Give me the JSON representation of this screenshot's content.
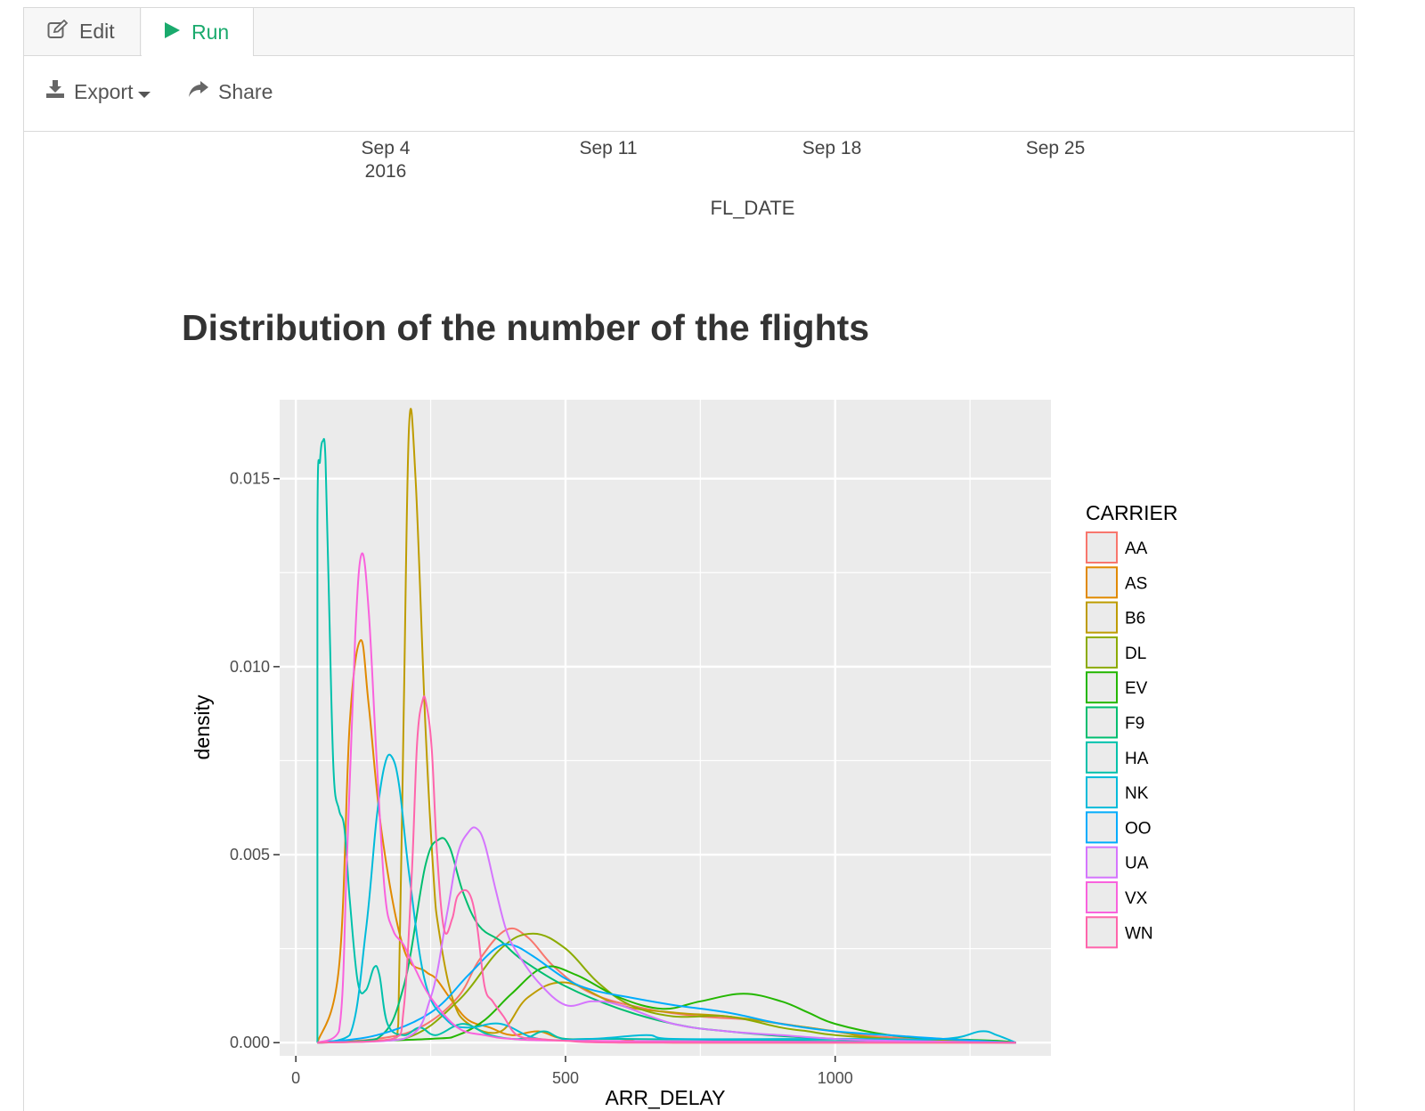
{
  "tabs": [
    {
      "label": "Edit",
      "icon": "edit-icon"
    },
    {
      "label": "Run",
      "icon": "play-icon",
      "active": true
    }
  ],
  "toolbar": {
    "export_label": "Export",
    "share_label": "Share"
  },
  "top_axis": {
    "ticks": [
      {
        "line1": "Sep 4",
        "line2": "2016"
      },
      {
        "line1": "Sep 11",
        "line2": ""
      },
      {
        "line1": "Sep 18",
        "line2": ""
      },
      {
        "line1": "Sep 25",
        "line2": ""
      }
    ],
    "label": "FL_DATE"
  },
  "colors": {
    "panel": "#ebebeb",
    "grid": "#ffffff",
    "run_green": "#1aaa6d"
  },
  "chart_data": {
    "type": "density",
    "title": "Distribution of the number of the flights",
    "xlabel": "ARR_DELAY",
    "ylabel": "density",
    "xlim": [
      -30,
      1400
    ],
    "ylim": [
      -0.00035,
      0.0171
    ],
    "x_ticks": [
      0,
      500,
      1000
    ],
    "x_tick_labels": [
      "0",
      "500",
      "1000"
    ],
    "y_ticks": [
      0.0,
      0.005,
      0.01,
      0.015
    ],
    "y_tick_labels": [
      "0.000",
      "0.005",
      "0.010",
      "0.015"
    ],
    "grid": true,
    "legend_title": "CARRIER",
    "legend_position": "right",
    "series": [
      {
        "name": "AA",
        "color": "#F8766D",
        "x": [
          40,
          150,
          230,
          300,
          340,
          390,
          430,
          480,
          550,
          650,
          750,
          850,
          950,
          1050,
          1150,
          1250,
          1335
        ],
        "y": [
          0,
          0.0001,
          0.0004,
          0.0012,
          0.0022,
          0.003,
          0.0028,
          0.002,
          0.0013,
          0.0009,
          0.0007,
          0.0006,
          0.0004,
          0.0002,
          0.0001,
          5e-05,
          0
        ]
      },
      {
        "name": "AS",
        "color": "#E18A00",
        "x": [
          40,
          80,
          100,
          120,
          135,
          160,
          200,
          240,
          260,
          290,
          320,
          360,
          400,
          450,
          500,
          600,
          700,
          1335
        ],
        "y": [
          0,
          0.002,
          0.0085,
          0.0107,
          0.009,
          0.0055,
          0.0025,
          0.0019,
          0.0017,
          0.0011,
          0.0006,
          0.0004,
          0.0002,
          0.0003,
          0.0001,
          0.0001,
          0,
          0
        ]
      },
      {
        "name": "B6",
        "color": "#BE9C00",
        "x": [
          40,
          180,
          190,
          200,
          210,
          222,
          240,
          255,
          265,
          290,
          320,
          380,
          430,
          500,
          600,
          700,
          800,
          900,
          1000,
          1100,
          1335
        ],
        "y": [
          0,
          0.0001,
          0.0005,
          0.0088,
          0.0164,
          0.015,
          0.0085,
          0.0045,
          0.003,
          0.0012,
          0.0005,
          0.0003,
          0.0012,
          0.0016,
          0.001,
          0.0008,
          0.0007,
          0.0005,
          0.0003,
          0.0001,
          0
        ]
      },
      {
        "name": "DL",
        "color": "#8CAB00",
        "x": [
          40,
          200,
          300,
          380,
          440,
          500,
          560,
          620,
          700,
          800,
          900,
          950,
          1000,
          1100,
          1200,
          1335
        ],
        "y": [
          0,
          0.0001,
          0.0011,
          0.0025,
          0.0029,
          0.0025,
          0.0016,
          0.001,
          0.0007,
          0.0007,
          0.0004,
          0.0003,
          0.0002,
          0.0001,
          5e-05,
          0
        ]
      },
      {
        "name": "EV",
        "color": "#24B700",
        "x": [
          40,
          250,
          300,
          350,
          400,
          460,
          520,
          600,
          680,
          750,
          830,
          900,
          950,
          1000,
          1100,
          1200,
          1300,
          1335
        ],
        "y": [
          0,
          0.0001,
          0.0002,
          0.0006,
          0.0013,
          0.002,
          0.0018,
          0.0012,
          0.0009,
          0.0011,
          0.0013,
          0.0011,
          0.0008,
          0.0005,
          0.0002,
          0.0001,
          5e-05,
          0
        ]
      },
      {
        "name": "F9",
        "color": "#00BE70",
        "x": [
          40,
          150,
          200,
          240,
          265,
          285,
          310,
          340,
          380,
          420,
          500,
          600,
          700,
          800,
          1000,
          1335
        ],
        "y": [
          0,
          0.0001,
          0.0015,
          0.0047,
          0.0054,
          0.0052,
          0.004,
          0.0031,
          0.0027,
          0.0022,
          0.0015,
          0.0009,
          0.0005,
          0.0003,
          0.0001,
          0
        ]
      },
      {
        "name": "HA",
        "color": "#00C1AB",
        "x": [
          40,
          40,
          45,
          50,
          55,
          62,
          70,
          80,
          90,
          100,
          115,
          130,
          145,
          155,
          170,
          200,
          230,
          260,
          310,
          360,
          420,
          460,
          500,
          600,
          1335
        ],
        "y": [
          0,
          0.0137,
          0.0155,
          0.016,
          0.0155,
          0.0115,
          0.0072,
          0.0062,
          0.0057,
          0.0038,
          0.0016,
          0.0014,
          0.002,
          0.0018,
          0.0005,
          0.0002,
          0.0004,
          0.0002,
          0.0005,
          0.0002,
          0.0001,
          0.0003,
          0.0001,
          0.0001,
          0
        ]
      },
      {
        "name": "NK",
        "color": "#00BBDA",
        "x": [
          40,
          100,
          130,
          150,
          165,
          178,
          192,
          210,
          240,
          280,
          320,
          380,
          450,
          550,
          650,
          700,
          1000,
          1200,
          1270,
          1300,
          1335
        ],
        "y": [
          0,
          0.0002,
          0.003,
          0.006,
          0.0074,
          0.0076,
          0.0068,
          0.0045,
          0.0016,
          0.0006,
          0.0004,
          0.0005,
          0.0001,
          0.0001,
          0.0002,
          0.0001,
          0.0001,
          0.0001,
          0.0003,
          0.0002,
          0
        ]
      },
      {
        "name": "OO",
        "color": "#00ACFC",
        "x": [
          40,
          150,
          250,
          320,
          370,
          400,
          440,
          500,
          550,
          620,
          700,
          800,
          900,
          1000,
          1100,
          1200,
          1335
        ],
        "y": [
          0,
          0.0002,
          0.0008,
          0.0018,
          0.0025,
          0.0026,
          0.0023,
          0.0017,
          0.0014,
          0.0012,
          0.001,
          0.0008,
          0.0005,
          0.0003,
          0.0002,
          0.0001,
          0
        ]
      },
      {
        "name": "UA",
        "color": "#D575FE",
        "x": [
          40,
          200,
          250,
          280,
          300,
          320,
          335,
          350,
          370,
          390,
          410,
          450,
          500,
          550,
          600,
          700,
          800,
          900,
          1000,
          1100,
          1335
        ],
        "y": [
          0,
          0.0001,
          0.0012,
          0.0034,
          0.005,
          0.0056,
          0.0057,
          0.0053,
          0.0041,
          0.003,
          0.0024,
          0.0016,
          0.001,
          0.0011,
          0.001,
          0.0005,
          0.0003,
          0.0002,
          0.0001,
          5e-05,
          0
        ]
      },
      {
        "name": "VX",
        "color": "#F962DD",
        "x": [
          40,
          80,
          95,
          110,
          122,
          135,
          150,
          165,
          180,
          200,
          220,
          250,
          300,
          350,
          400,
          500,
          1335
        ],
        "y": [
          0,
          0.0003,
          0.005,
          0.0108,
          0.013,
          0.0115,
          0.0075,
          0.004,
          0.003,
          0.0026,
          0.002,
          0.0012,
          0.0004,
          0.0002,
          0.0001,
          5e-05,
          0
        ]
      },
      {
        "name": "WN",
        "color": "#FF65AC",
        "x": [
          40,
          180,
          200,
          215,
          225,
          235,
          242,
          252,
          262,
          275,
          290,
          300,
          320,
          335,
          350,
          365,
          385,
          410,
          450,
          500,
          600,
          1335
        ],
        "y": [
          0,
          0.0001,
          0.0009,
          0.0045,
          0.008,
          0.0091,
          0.009,
          0.0078,
          0.005,
          0.003,
          0.0033,
          0.0039,
          0.004,
          0.0032,
          0.0015,
          0.0011,
          0.0007,
          0.0002,
          0.0001,
          5e-05,
          0,
          0
        ]
      }
    ]
  }
}
